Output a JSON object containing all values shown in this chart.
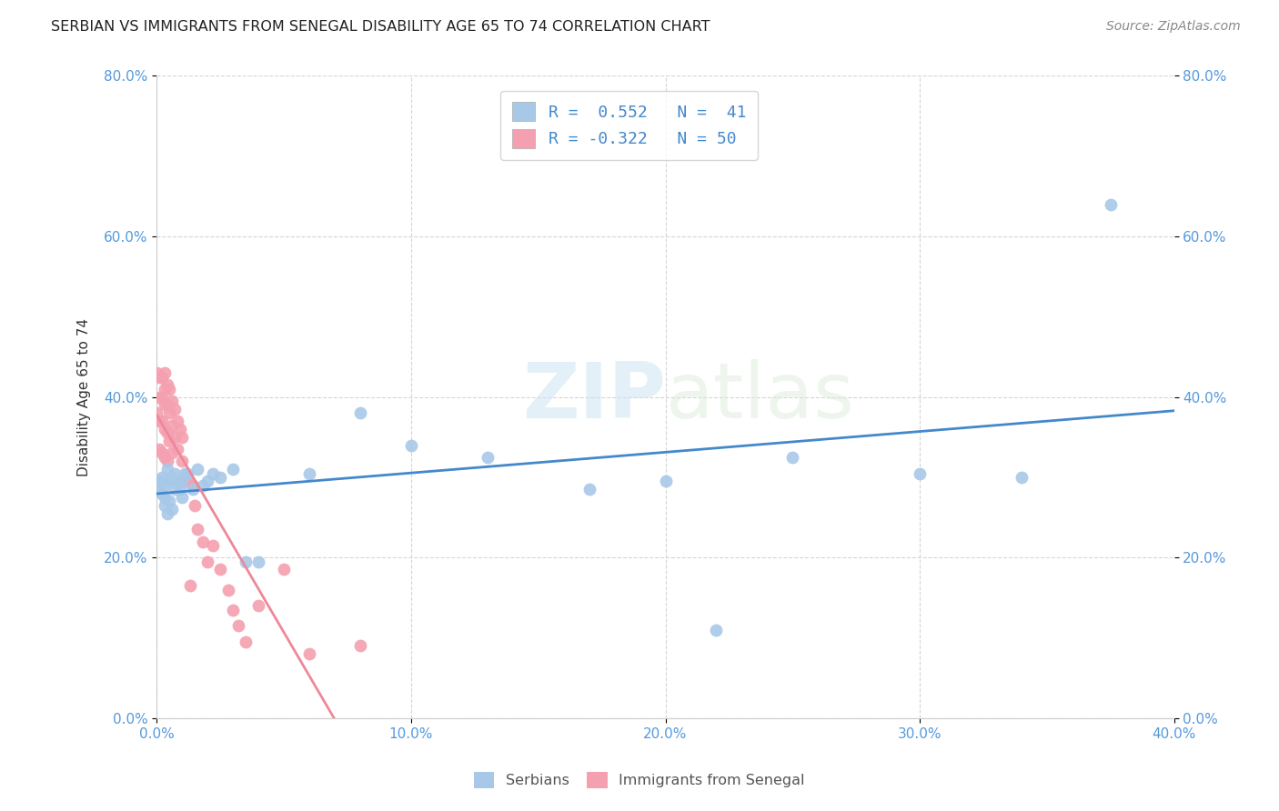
{
  "title": "SERBIAN VS IMMIGRANTS FROM SENEGAL DISABILITY AGE 65 TO 74 CORRELATION CHART",
  "source": "Source: ZipAtlas.com",
  "ylabel_label": "Disability Age 65 to 74",
  "xlim": [
    0.0,
    0.4
  ],
  "ylim": [
    0.0,
    0.8
  ],
  "xticks": [
    0.0,
    0.1,
    0.2,
    0.3,
    0.4
  ],
  "yticks": [
    0.0,
    0.2,
    0.4,
    0.6,
    0.8
  ],
  "xtick_labels": [
    "0.0%",
    "10.0%",
    "20.0%",
    "30.0%",
    "40.0%"
  ],
  "ytick_labels": [
    "0.0%",
    "20.0%",
    "40.0%",
    "60.0%",
    "80.0%"
  ],
  "serbian_color": "#a8c8e8",
  "senegal_color": "#f4a0b0",
  "serbian_line_color": "#4488cc",
  "senegal_line_color": "#ee8899",
  "watermark_part1": "ZIP",
  "watermark_part2": "atlas",
  "legend_serbian_R": "R =  0.552",
  "legend_serbian_N": "N =  41",
  "legend_senegal_R": "R = -0.322",
  "legend_senegal_N": "N = 50",
  "serbian_points_x": [
    0.001,
    0.001,
    0.002,
    0.002,
    0.003,
    0.003,
    0.003,
    0.004,
    0.004,
    0.005,
    0.005,
    0.006,
    0.006,
    0.007,
    0.007,
    0.008,
    0.009,
    0.01,
    0.01,
    0.011,
    0.012,
    0.014,
    0.016,
    0.018,
    0.02,
    0.022,
    0.025,
    0.03,
    0.035,
    0.04,
    0.06,
    0.08,
    0.1,
    0.13,
    0.17,
    0.2,
    0.22,
    0.25,
    0.3,
    0.34,
    0.375
  ],
  "serbian_points_y": [
    0.285,
    0.295,
    0.28,
    0.3,
    0.265,
    0.29,
    0.275,
    0.31,
    0.255,
    0.295,
    0.27,
    0.3,
    0.26,
    0.285,
    0.305,
    0.295,
    0.285,
    0.295,
    0.275,
    0.305,
    0.305,
    0.285,
    0.31,
    0.29,
    0.295,
    0.305,
    0.3,
    0.31,
    0.195,
    0.195,
    0.305,
    0.38,
    0.34,
    0.325,
    0.285,
    0.295,
    0.11,
    0.325,
    0.305,
    0.3,
    0.64
  ],
  "senegal_points_x": [
    0.0,
    0.0,
    0.001,
    0.001,
    0.001,
    0.001,
    0.002,
    0.002,
    0.002,
    0.002,
    0.003,
    0.003,
    0.003,
    0.003,
    0.003,
    0.004,
    0.004,
    0.004,
    0.004,
    0.005,
    0.005,
    0.005,
    0.006,
    0.006,
    0.006,
    0.007,
    0.007,
    0.008,
    0.008,
    0.009,
    0.01,
    0.01,
    0.011,
    0.012,
    0.013,
    0.014,
    0.015,
    0.016,
    0.018,
    0.02,
    0.022,
    0.025,
    0.028,
    0.03,
    0.032,
    0.035,
    0.04,
    0.05,
    0.06,
    0.08
  ],
  "senegal_points_y": [
    0.43,
    0.38,
    0.425,
    0.4,
    0.37,
    0.335,
    0.425,
    0.4,
    0.37,
    0.33,
    0.43,
    0.41,
    0.39,
    0.36,
    0.325,
    0.415,
    0.39,
    0.355,
    0.32,
    0.41,
    0.38,
    0.345,
    0.395,
    0.365,
    0.33,
    0.385,
    0.35,
    0.37,
    0.335,
    0.36,
    0.35,
    0.32,
    0.295,
    0.295,
    0.165,
    0.29,
    0.265,
    0.235,
    0.22,
    0.195,
    0.215,
    0.185,
    0.16,
    0.135,
    0.115,
    0.095,
    0.14,
    0.185,
    0.08,
    0.09
  ]
}
